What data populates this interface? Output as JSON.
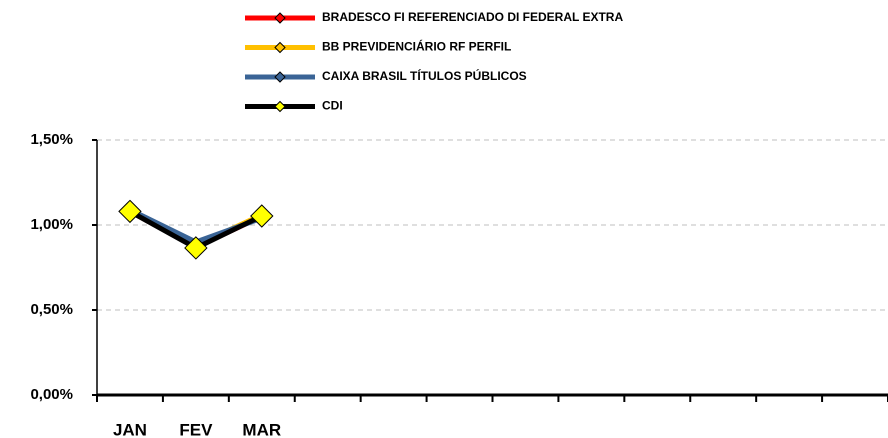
{
  "chart_data": {
    "type": "line",
    "categories": [
      "JAN",
      "FEV",
      "MAR",
      null,
      null,
      null,
      null,
      null,
      null,
      null,
      null,
      null
    ],
    "series": [
      {
        "name": "BRADESCO FI REFERENCIADO DI FEDERAL EXTRA",
        "color": "#ff0000",
        "marker_color": "#ff0000",
        "values": [
          1.08,
          0.87,
          1.05,
          null,
          null,
          null,
          null,
          null,
          null,
          null,
          null,
          null
        ]
      },
      {
        "name": "BB PREVIDENCIÁRIO RF PERFIL",
        "color": "#ffc000",
        "marker_color": "#ffc000",
        "values": [
          1.08,
          0.88,
          1.06,
          null,
          null,
          null,
          null,
          null,
          null,
          null,
          null,
          null
        ]
      },
      {
        "name": "CAIXA BRASIL TÍTULOS PÚBLICOS",
        "color": "#3a6496",
        "marker_color": "#3a6496",
        "values": [
          1.09,
          0.9,
          1.04,
          null,
          null,
          null,
          null,
          null,
          null,
          null,
          null,
          null
        ]
      },
      {
        "name": "CDI",
        "color": "#000000",
        "marker_color": "#ffff00",
        "values": [
          1.08,
          0.865,
          1.053,
          null,
          null,
          null,
          null,
          null,
          null,
          null,
          null,
          null
        ]
      }
    ],
    "ylim": [
      0,
      1.5
    ],
    "yticks": [
      {
        "value": 0,
        "label": "0,00%"
      },
      {
        "value": 0.5,
        "label": "0,50%"
      },
      {
        "value": 1,
        "label": "1,00%"
      },
      {
        "value": 1.5,
        "label": "1,50%"
      }
    ],
    "grid": true
  }
}
